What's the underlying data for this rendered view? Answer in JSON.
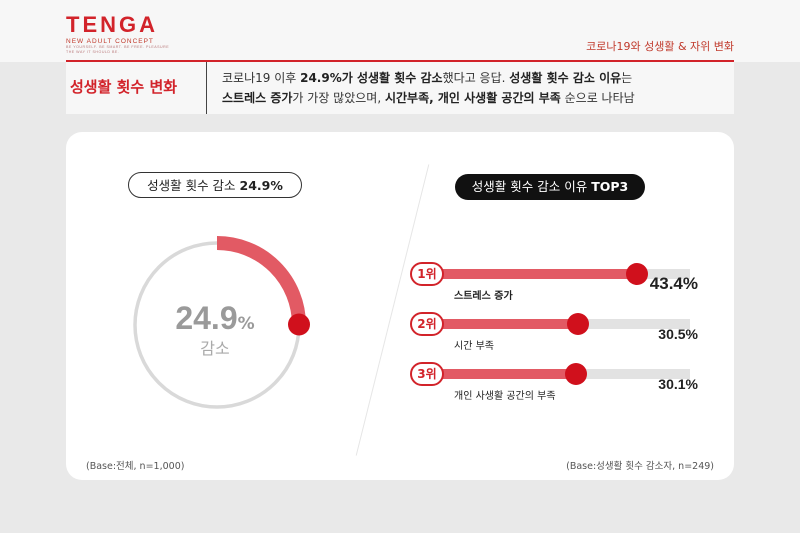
{
  "brand": {
    "logo": "TENGA",
    "subtitle": "NEW ADULT CONCEPT",
    "tagline": "BE YOURSELF. BE SMART. BE FREE. PLEASURE THE WAY IT SHOULD BE."
  },
  "breadcrumb": "코로나19와 성생활 & 자위 변화",
  "section": {
    "title": "성생활 횟수 변화",
    "desc_line1_a": "코로나19 이후 ",
    "desc_line1_b": "24.9%가 성생활 횟수 감소",
    "desc_line1_c": "했다고 응답. ",
    "desc_line1_d": "성생활 횟수 감소 이유",
    "desc_line1_e": "는",
    "desc_line2_a": "스트레스 증가",
    "desc_line2_b": "가 가장 많았으며, ",
    "desc_line2_c": "시간부족, 개인 사생활 공간의 부족",
    "desc_line2_d": " 순으로 나타남"
  },
  "left": {
    "pill_text": "성생활 횟수 감소 ",
    "pill_value": "24.9%",
    "center_value": "24.9",
    "center_unit": "%",
    "center_label": "감소",
    "note": "(Base:전체, n=1,000)"
  },
  "right": {
    "pill_text": "성생활 횟수 감소 이유 ",
    "pill_bold": "TOP3",
    "note": "(Base:성생활 횟수 감소자, n=249)"
  },
  "colors": {
    "accent": "#d2232a",
    "fill": "#e25a64",
    "track": "#e2e2e2",
    "dot": "#d0101c"
  },
  "chart_data": [
    {
      "type": "pie",
      "title": "성생활 횟수 감소 24.9%",
      "values": [
        24.9,
        75.1
      ],
      "labels": [
        "감소",
        ""
      ]
    },
    {
      "type": "bar",
      "title": "성생활 횟수 감소 이유 TOP3",
      "ranks": [
        "1위",
        "2위",
        "3위"
      ],
      "categories": [
        "스트레스 증가",
        "시간 부족",
        "개인 사생활 공간의 부족"
      ],
      "values": [
        43.4,
        30.5,
        30.1
      ],
      "value_labels": [
        "43.4%",
        "30.5%",
        "30.1%"
      ],
      "xlim": [
        0,
        55
      ]
    }
  ]
}
